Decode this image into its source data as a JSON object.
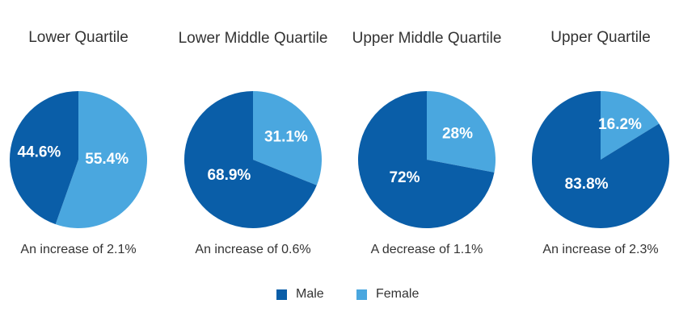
{
  "colors": {
    "male": "#0a5ea8",
    "female": "#4aa7df"
  },
  "legend": [
    {
      "label": "Male",
      "color": "#0a5ea8"
    },
    {
      "label": "Female",
      "color": "#4aa7df"
    }
  ],
  "chart_data": [
    {
      "type": "pie",
      "title": "Lower Quartile",
      "slices": [
        {
          "series": "Female",
          "value": 55.4,
          "label": "55.4%"
        },
        {
          "series": "Male",
          "value": 44.6,
          "label": "44.6%"
        }
      ],
      "caption": "An increase of 2.1%"
    },
    {
      "type": "pie",
      "title": "Lower Middle Quartile",
      "slices": [
        {
          "series": "Female",
          "value": 31.1,
          "label": "31.1%"
        },
        {
          "series": "Male",
          "value": 68.9,
          "label": "68.9%"
        }
      ],
      "caption": "An increase of 0.6%"
    },
    {
      "type": "pie",
      "title": "Upper Middle Quartile",
      "slices": [
        {
          "series": "Female",
          "value": 28,
          "label": "28%"
        },
        {
          "series": "Male",
          "value": 72,
          "label": "72%"
        }
      ],
      "caption": "A decrease of 1.1%"
    },
    {
      "type": "pie",
      "title": "Upper Quartile",
      "slices": [
        {
          "series": "Female",
          "value": 16.2,
          "label": "16.2%"
        },
        {
          "series": "Male",
          "value": 83.8,
          "label": "83.8%"
        }
      ],
      "caption": "An increase of 2.3%"
    }
  ]
}
